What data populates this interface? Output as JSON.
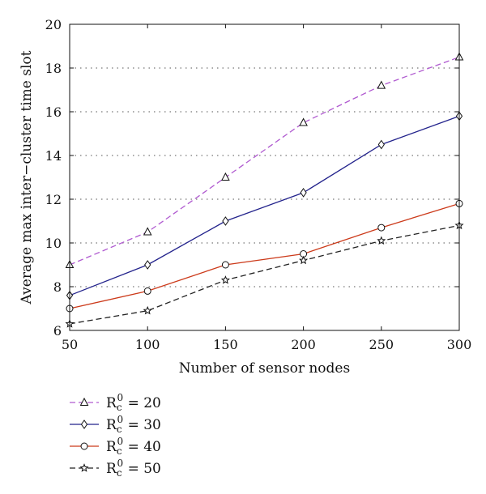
{
  "chart_data": {
    "type": "line",
    "title": "",
    "xlabel": "Number of sensor nodes",
    "ylabel": "Average max inter−cluster time slot",
    "xlim": [
      50,
      300
    ],
    "ylim": [
      6,
      20
    ],
    "x_ticks": [
      "50",
      "100",
      "150",
      "200",
      "250",
      "300"
    ],
    "y_ticks": [
      "6",
      "8",
      "10",
      "12",
      "14",
      "16",
      "18",
      "20"
    ],
    "grid": "horizontal-dotted",
    "legend_position": "below-plot-left",
    "x": [
      50,
      100,
      150,
      200,
      250,
      300
    ],
    "series": [
      {
        "legend": {
          "base": "R",
          "sub": "c",
          "sup": "0",
          "rest": " = 20"
        },
        "color": "#b05ad0",
        "dash": "dashed",
        "marker": "triangle",
        "values": [
          9.0,
          10.5,
          13.0,
          15.5,
          17.2,
          18.5
        ]
      },
      {
        "legend": {
          "base": "R",
          "sub": "c",
          "sup": "0",
          "rest": " = 30"
        },
        "color": "#23238c",
        "dash": "solid",
        "marker": "diamond",
        "values": [
          7.6,
          9.0,
          11.0,
          12.3,
          14.5,
          15.8
        ]
      },
      {
        "legend": {
          "base": "R",
          "sub": "c",
          "sup": "0",
          "rest": " = 40"
        },
        "color": "#cc3a1a",
        "dash": "solid",
        "marker": "circle",
        "values": [
          7.0,
          7.8,
          9.0,
          9.5,
          10.7,
          11.8
        ]
      },
      {
        "legend": {
          "base": "R",
          "sub": "c",
          "sup": "0",
          "rest": " = 50"
        },
        "color": "#222222",
        "dash": "dashed",
        "marker": "star",
        "values": [
          6.3,
          6.9,
          8.3,
          9.2,
          10.1,
          10.8
        ]
      }
    ]
  }
}
